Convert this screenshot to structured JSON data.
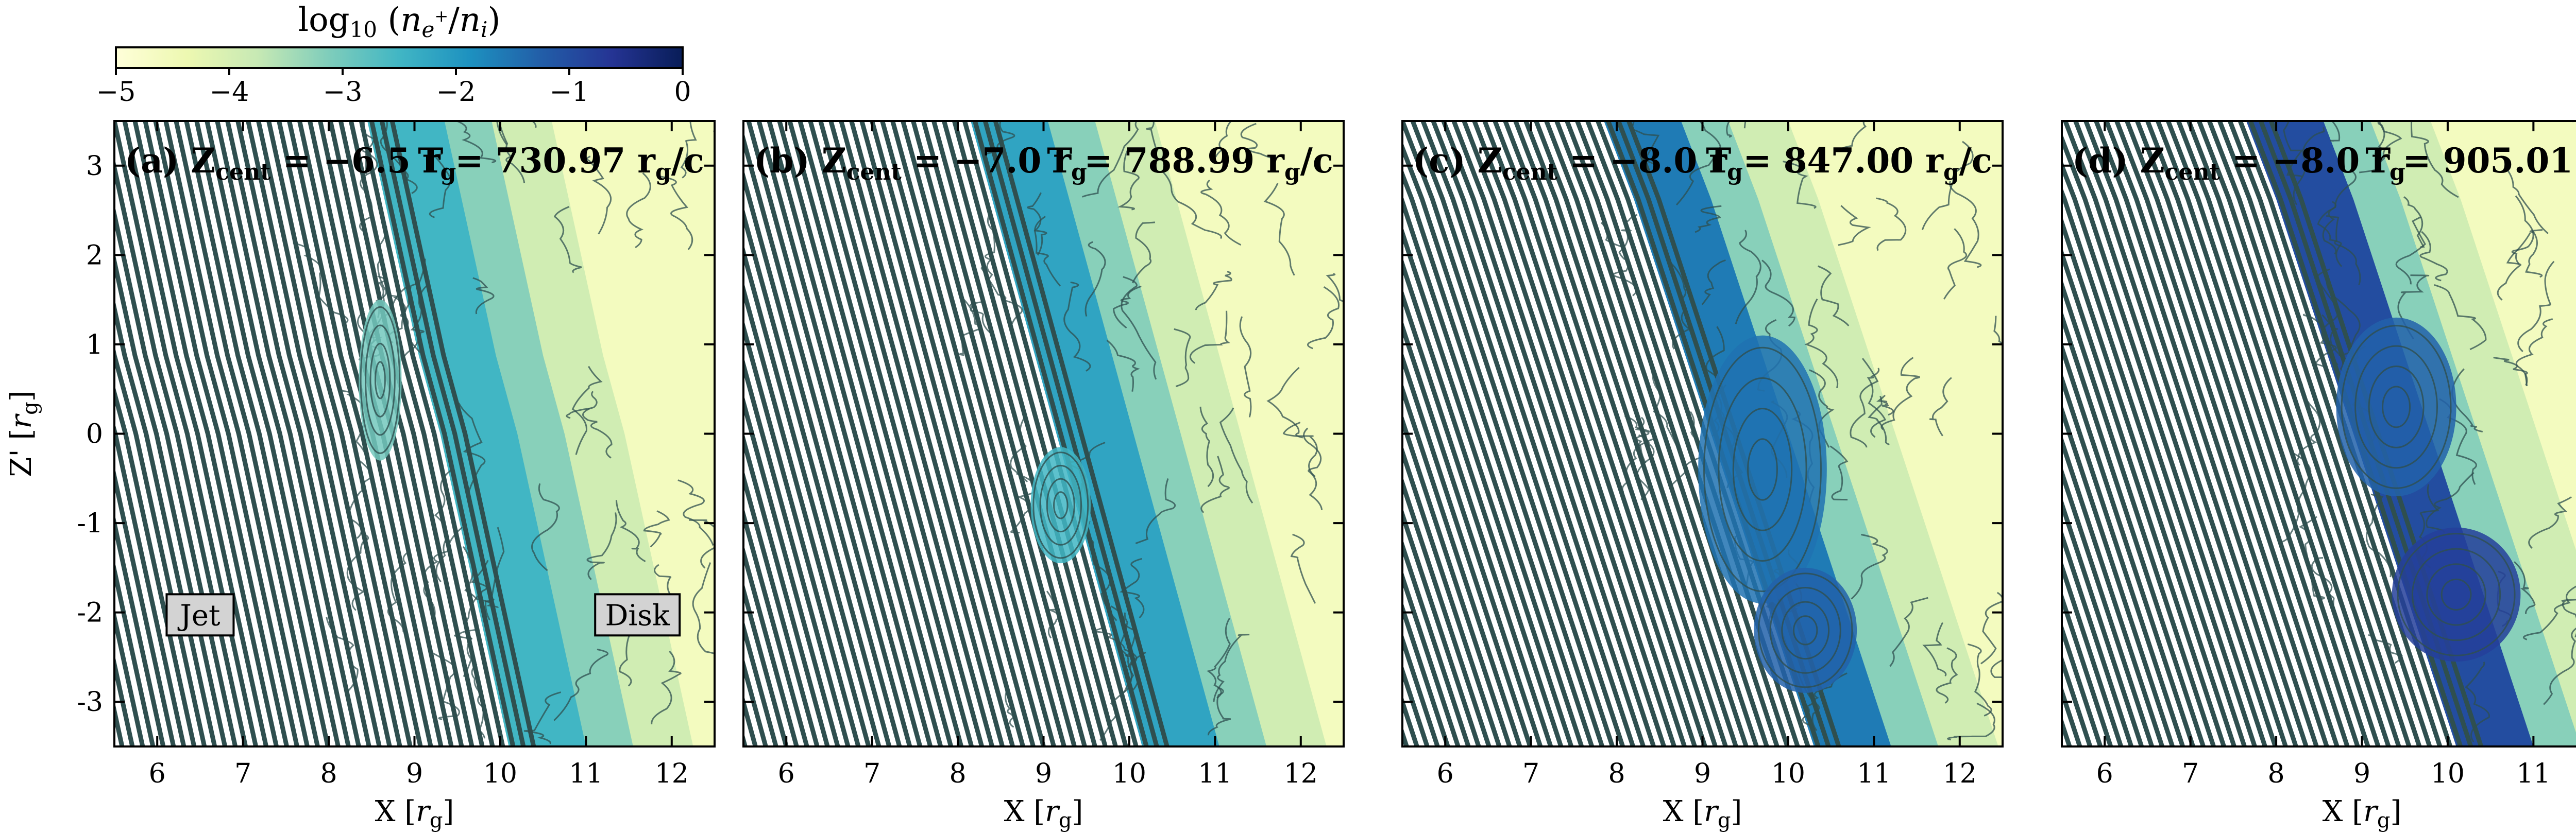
{
  "chart_data": {
    "type": "heatmap",
    "colorbar": {
      "title": "log₁₀ (n_e+ / n_i)",
      "range": [
        -5,
        0
      ],
      "ticks": [
        -5,
        -4,
        -3,
        -2,
        -1,
        0
      ],
      "tick_labels": [
        "−5",
        "−4",
        "−3",
        "−2",
        "−1",
        "0"
      ],
      "colormap": [
        "#ffffd9",
        "#edf8b1",
        "#c7e9b4",
        "#7fcdbb",
        "#41b6c4",
        "#1d91c0",
        "#225ea8",
        "#253494",
        "#081d58"
      ]
    },
    "streamline_color": "#2f4f4f",
    "xlim": [
      5.5,
      12.5
    ],
    "ylim": [
      -3.5,
      3.5
    ],
    "xticks": [
      6,
      7,
      8,
      9,
      10,
      11,
      12
    ],
    "yticks": [
      -3,
      -2,
      -1,
      0,
      1,
      2,
      3
    ],
    "xtick_labels": [
      "6",
      "7",
      "8",
      "9",
      "10",
      "11",
      "12"
    ],
    "ytick_labels": [
      "-3",
      "-2",
      "-1",
      "0",
      "1",
      "2",
      "3"
    ],
    "xlabel_main": "X [",
    "xlabel_var": "r",
    "xlabel_sub": "g",
    "xlabel_end": "]",
    "ylabel_main": "Z' [",
    "ylabel_var": "r",
    "ylabel_sub": "g",
    "ylabel_end": "]",
    "panels": [
      {
        "label": "(a)",
        "z_cent": "−6.5",
        "time": "730.97",
        "interface_x": [
          9.0,
          9.2,
          9.4,
          9.6,
          9.85,
          10.05,
          10.25,
          10.45,
          10.65
        ],
        "log_ratio_peak": -2.5,
        "vortices": [
          {
            "x": 8.6,
            "y": 0.6,
            "rx": 0.25,
            "ry": 0.9,
            "log_ratio": -3.0
          }
        ]
      },
      {
        "label": "(b)",
        "z_cent": "−7.0",
        "time": "788.99",
        "interface_x": [
          8.7,
          8.95,
          9.2,
          9.45,
          9.7,
          9.95,
          10.2,
          10.45,
          10.7
        ],
        "log_ratio_peak": -2.2,
        "vortices": [
          {
            "x": 9.2,
            "y": -0.8,
            "rx": 0.35,
            "ry": 0.65,
            "log_ratio": -2.5
          }
        ]
      },
      {
        "label": "(c)",
        "z_cent": "−8.0",
        "time": "847.00",
        "interface_x": [
          8.4,
          8.75,
          9.05,
          9.35,
          9.65,
          9.95,
          10.25,
          10.55,
          10.85
        ],
        "log_ratio_peak": -1.6,
        "vortices": [
          {
            "x": 9.7,
            "y": -0.4,
            "rx": 0.75,
            "ry": 1.5,
            "log_ratio": -1.5
          },
          {
            "x": 10.2,
            "y": -2.2,
            "rx": 0.6,
            "ry": 0.7,
            "log_ratio": -1.3
          }
        ]
      },
      {
        "label": "(d)",
        "z_cent": "−8.0",
        "time": "905.01",
        "interface_x": [
          8.2,
          8.55,
          8.85,
          9.15,
          9.45,
          9.75,
          10.05,
          10.35,
          10.65
        ],
        "log_ratio_peak": -1.0,
        "vortices": [
          {
            "x": 9.4,
            "y": 0.3,
            "rx": 0.7,
            "ry": 1.0,
            "log_ratio": -1.3
          },
          {
            "x": 10.1,
            "y": -1.8,
            "rx": 0.75,
            "ry": 0.75,
            "log_ratio": -0.8
          }
        ]
      }
    ],
    "annotations": [
      {
        "panel": 0,
        "text": "Jet",
        "x": 6.5,
        "y": -2.05
      },
      {
        "panel": 0,
        "text": "Disk",
        "x": 11.6,
        "y": -2.05
      }
    ]
  }
}
